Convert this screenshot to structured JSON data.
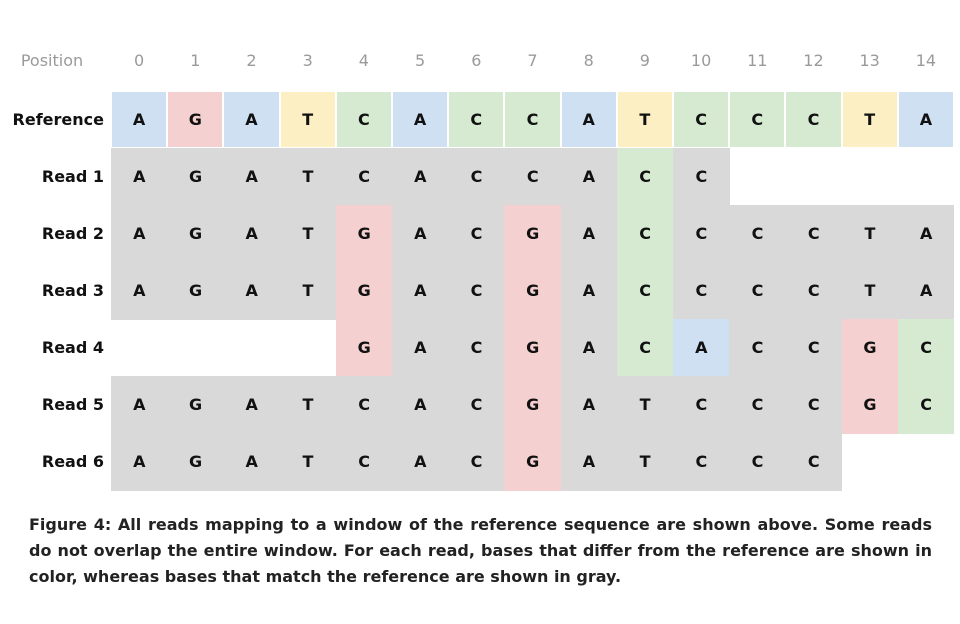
{
  "header_label": "Position",
  "positions": [
    "0",
    "1",
    "2",
    "3",
    "4",
    "5",
    "6",
    "7",
    "8",
    "9",
    "10",
    "11",
    "12",
    "13",
    "14"
  ],
  "reference": {
    "label": "Reference",
    "bases": [
      "A",
      "G",
      "A",
      "T",
      "C",
      "A",
      "C",
      "C",
      "A",
      "T",
      "C",
      "C",
      "C",
      "T",
      "A"
    ]
  },
  "reads": [
    {
      "label": "Read 1",
      "start": 0,
      "bases": [
        "A",
        "G",
        "A",
        "T",
        "C",
        "A",
        "C",
        "C",
        "A",
        "C",
        "C"
      ]
    },
    {
      "label": "Read 2",
      "start": 0,
      "bases": [
        "A",
        "G",
        "A",
        "T",
        "G",
        "A",
        "C",
        "G",
        "A",
        "C",
        "C",
        "C",
        "C",
        "T",
        "A"
      ]
    },
    {
      "label": "Read 3",
      "start": 0,
      "bases": [
        "A",
        "G",
        "A",
        "T",
        "G",
        "A",
        "C",
        "G",
        "A",
        "C",
        "C",
        "C",
        "C",
        "T",
        "A"
      ]
    },
    {
      "label": "Read 4",
      "start": 4,
      "bases": [
        "G",
        "A",
        "C",
        "G",
        "A",
        "C",
        "A",
        "C",
        "C",
        "G",
        "C"
      ]
    },
    {
      "label": "Read 5",
      "start": 0,
      "bases": [
        "A",
        "G",
        "A",
        "T",
        "C",
        "A",
        "C",
        "G",
        "A",
        "T",
        "C",
        "C",
        "C",
        "G",
        "C"
      ]
    },
    {
      "label": "Read 6",
      "start": 0,
      "bases": [
        "A",
        "G",
        "A",
        "T",
        "C",
        "A",
        "C",
        "G",
        "A",
        "T",
        "C",
        "C",
        "C"
      ]
    }
  ],
  "colors": {
    "A": "#cfe0f3",
    "C": "#d5ead0",
    "G": "#f5d0d0",
    "T": "#fcefc4",
    "match": "#d9d9d9"
  },
  "caption": "Figure 4: All reads mapping to a window of the reference sequence are shown above. Some reads do not overlap the entire window. For each read, bases that differ from the reference are shown in color, whereas bases that match the reference are shown in gray."
}
